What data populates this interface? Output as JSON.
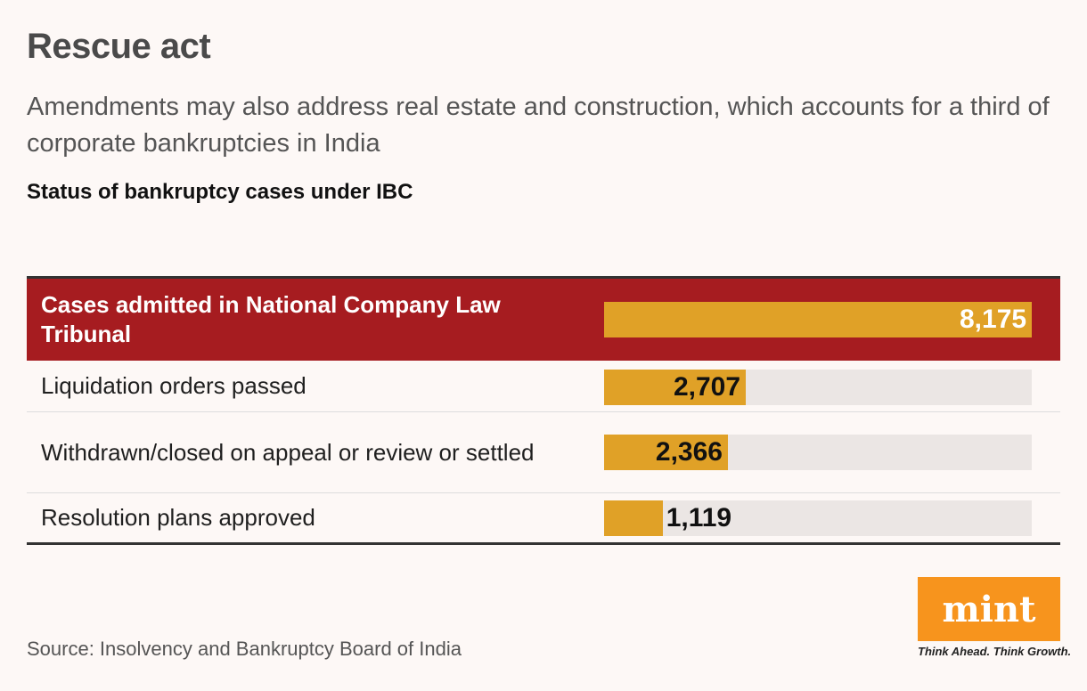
{
  "header": {
    "title": "Rescue act",
    "subtitle": "Amendments may also address real estate and construction, which accounts for a third of corporate bankruptcies in India"
  },
  "chart_data": {
    "type": "bar",
    "title": "Status of bankruptcy cases under IBC",
    "categories": [
      "Cases admitted in National Company Law Tribunal",
      "Liquidation orders passed",
      "Withdrawn/closed on appeal or review or settled",
      "Resolution plans approved"
    ],
    "values": [
      8175,
      2707,
      2366,
      1119
    ],
    "value_labels": [
      "8,175",
      "2,707",
      "2,366",
      "1,119"
    ],
    "highlight_index": 0,
    "colors": {
      "bar": "#e0a127",
      "highlight_row": "#a61c20",
      "track": "#ebe6e4"
    }
  },
  "footer": {
    "source": "Source: Insolvency and Bankruptcy Board of India",
    "logo_text": "mint",
    "tagline": "Think Ahead. Think Growth."
  }
}
